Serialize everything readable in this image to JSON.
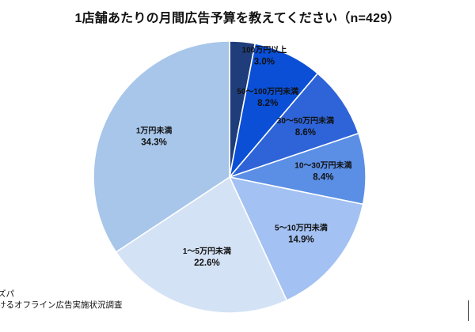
{
  "chart_data": {
    "type": "pie",
    "title": "1店舗あたりの月間広告予算を教えてください（n=429）",
    "unit": "%",
    "start_angle_deg": 0,
    "direction": "clockwise",
    "slices": [
      {
        "label": "100万円以上",
        "value": 3.0,
        "value_text": "3.0%",
        "color": "#1f3d7a"
      },
      {
        "label": "50～100万円未満",
        "value": 8.2,
        "value_text": "8.2%",
        "color": "#0a4fd6"
      },
      {
        "label": "30～50万円未満",
        "value": 8.6,
        "value_text": "8.6%",
        "color": "#2e64d8"
      },
      {
        "label": "10～30万円未満",
        "value": 8.4,
        "value_text": "8.4%",
        "color": "#5b8fe6"
      },
      {
        "label": "5～10万円未満",
        "value": 14.9,
        "value_text": "14.9%",
        "color": "#a3c1f2"
      },
      {
        "label": "1～5万円未満",
        "value": 22.6,
        "value_text": "22.6%",
        "color": "#d4e2f5"
      },
      {
        "label": "1万円未満",
        "value": 34.3,
        "value_text": "34.3%",
        "color": "#a7c6ea"
      }
    ]
  },
  "source": {
    "line1": "ズパ",
    "line2": "けるオフライン広告実施状況調査"
  }
}
